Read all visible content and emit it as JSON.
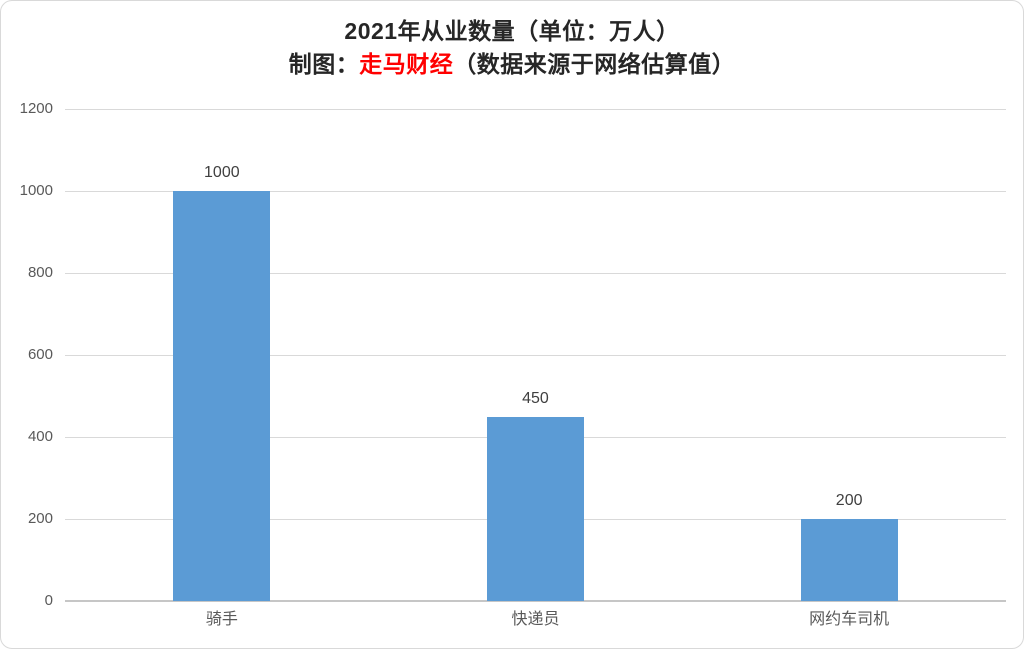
{
  "header": {
    "title_line1": "2021年从业数量（单位：万人）",
    "subtitle_prefix": "制图：",
    "subtitle_brand": "走马财经",
    "subtitle_suffix": "（数据来源于网络估算值）"
  },
  "colors": {
    "bar": "#5b9bd5",
    "gridline": "#d9d9d9",
    "axis_line": "#c6c6c6",
    "tick_label": "#595959",
    "data_label": "#404040",
    "category_label": "#595959",
    "title_text": "#262626",
    "brand_red": "#ff0000",
    "card_border": "#d9d9d9"
  },
  "chart_data": {
    "type": "bar",
    "title": "2021年从业数量（单位：万人）",
    "subtitle": "制图：走马财经（数据来源于网络估算值）",
    "categories": [
      "骑手",
      "快递员",
      "网约车司机"
    ],
    "values": [
      1000,
      450,
      200
    ],
    "data_labels": [
      "1000",
      "450",
      "200"
    ],
    "xlabel": "",
    "ylabel": "",
    "ylim": [
      0,
      1200
    ],
    "yticks": [
      0,
      200,
      400,
      600,
      800,
      1000,
      1200
    ],
    "grid": true,
    "legend": false,
    "bar_color": "#5b9bd5"
  }
}
